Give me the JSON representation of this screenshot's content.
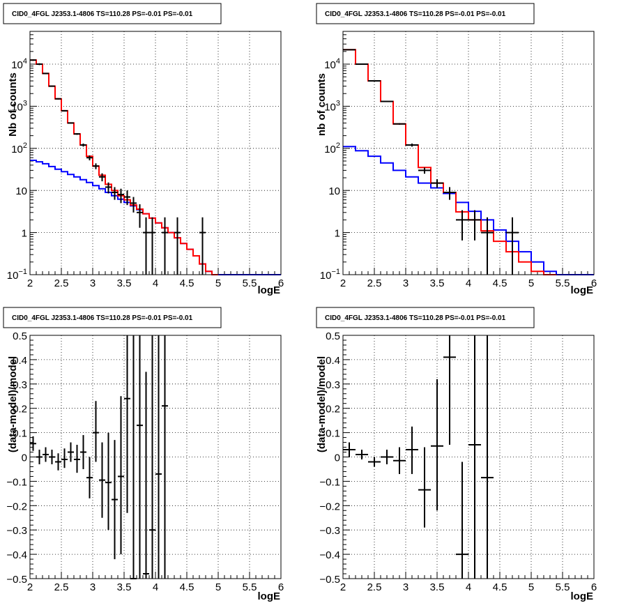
{
  "chart_data": [
    {
      "type": "line",
      "title": "CID0_4FGL J2353.1-4806 TS=110.28 PS=-0.01 PS=-0.01",
      "xlabel": "logE",
      "ylabel": "Nb of counts",
      "log_y": true,
      "xlim": [
        2,
        6
      ],
      "ylim": [
        0.1,
        60000
      ],
      "x_ticks": [
        "2",
        "2.5",
        "3",
        "3.5",
        "4",
        "4.5",
        "5",
        "5.5",
        "6"
      ],
      "y_ticks": [
        {
          "v": 0.1,
          "base": "10",
          "exp": "−1"
        },
        {
          "v": 1,
          "label": "1"
        },
        {
          "v": 10,
          "label": "10"
        },
        {
          "v": 100,
          "base": "10",
          "exp": "2"
        },
        {
          "v": 1000,
          "base": "10",
          "exp": "3"
        },
        {
          "v": 10000,
          "base": "10",
          "exp": "4"
        }
      ],
      "grid": true,
      "bin_edges": [
        2.0,
        2.1,
        2.2,
        2.3,
        2.4,
        2.5,
        2.6,
        2.7,
        2.8,
        2.9,
        3.0,
        3.1,
        3.2,
        3.3,
        3.4,
        3.5,
        3.6,
        3.7,
        3.8,
        3.9,
        4.0,
        4.1,
        4.2,
        4.3,
        4.4,
        4.5,
        4.6,
        4.7,
        4.8,
        4.9,
        5.0,
        5.1,
        5.2,
        5.3,
        5.4,
        5.5,
        5.6,
        5.7,
        5.8,
        5.9,
        6.0
      ],
      "series": [
        {
          "color": "#0000ff",
          "style": "hist",
          "values": [
            52,
            48,
            43,
            37,
            32,
            28,
            24,
            21,
            18,
            15.5,
            13,
            11,
            9,
            7.5,
            6.2,
            5.2,
            4.3,
            3.5,
            2.8,
            2.2,
            1.7,
            1.3,
            1.0,
            0.75,
            0.55,
            0.4,
            0.28,
            0.18,
            0.12,
            0.1,
            0.1,
            0.1,
            0.1,
            0.1,
            0.1,
            0.1,
            0.1,
            0.1,
            0.1,
            0.1
          ]
        },
        {
          "color": "#ff0000",
          "style": "hist",
          "values": [
            12500,
            10000,
            6000,
            3000,
            1500,
            780,
            400,
            220,
            120,
            65,
            38,
            23,
            14,
            10,
            7.5,
            6,
            4.5,
            3.6,
            2.8,
            2.2,
            1.7,
            1.3,
            1.0,
            0.75,
            0.55,
            0.4,
            0.28,
            0.18,
            0.12,
            0.1
          ]
        },
        {
          "color": "#000000",
          "style": "points",
          "points": [
            {
              "x": 2.05,
              "y": 12500,
              "lo": 12000,
              "hi": 13000
            },
            {
              "x": 2.15,
              "y": 10000,
              "lo": 9500,
              "hi": 10500
            },
            {
              "x": 2.25,
              "y": 6000,
              "lo": 5800,
              "hi": 6200
            },
            {
              "x": 2.35,
              "y": 3000,
              "lo": 2900,
              "hi": 3100
            },
            {
              "x": 2.45,
              "y": 1500,
              "lo": 1450,
              "hi": 1550
            },
            {
              "x": 2.55,
              "y": 780,
              "lo": 750,
              "hi": 810
            },
            {
              "x": 2.65,
              "y": 400,
              "lo": 385,
              "hi": 415
            },
            {
              "x": 2.75,
              "y": 220,
              "lo": 210,
              "hi": 230
            },
            {
              "x": 2.85,
              "y": 120,
              "lo": 110,
              "hi": 130
            },
            {
              "x": 2.95,
              "y": 60,
              "lo": 52,
              "hi": 68
            },
            {
              "x": 3.05,
              "y": 38,
              "lo": 32,
              "hi": 44
            },
            {
              "x": 3.15,
              "y": 21,
              "lo": 16.5,
              "hi": 25.5
            },
            {
              "x": 3.25,
              "y": 12,
              "lo": 8.5,
              "hi": 15.5
            },
            {
              "x": 3.35,
              "y": 9,
              "lo": 6,
              "hi": 12
            },
            {
              "x": 3.45,
              "y": 8,
              "lo": 5,
              "hi": 11
            },
            {
              "x": 3.55,
              "y": 7,
              "lo": 4.5,
              "hi": 10
            },
            {
              "x": 3.65,
              "y": 5,
              "lo": 3,
              "hi": 7
            },
            {
              "x": 3.75,
              "y": 3,
              "lo": 1.3,
              "hi": 4.7
            },
            {
              "x": 3.85,
              "y": 1,
              "lo": 0.1,
              "hi": 2.3
            },
            {
              "x": 3.95,
              "y": 1,
              "lo": 0.1,
              "hi": 2.3
            },
            {
              "x": 4.15,
              "y": 1,
              "lo": 0.1,
              "hi": 2.3
            },
            {
              "x": 4.35,
              "y": 1,
              "lo": 0.1,
              "hi": 2.3
            },
            {
              "x": 4.75,
              "y": 1,
              "lo": 0.1,
              "hi": 2.3
            }
          ]
        }
      ]
    },
    {
      "type": "line",
      "title": "CID0_4FGL J2353.1-4806 TS=110.28 PS=-0.01 PS=-0.01",
      "xlabel": "logE",
      "ylabel": "nb of counts",
      "log_y": true,
      "xlim": [
        2,
        6
      ],
      "ylim": [
        0.1,
        60000
      ],
      "x_ticks": [
        "2",
        "2.5",
        "3",
        "3.5",
        "4",
        "4.5",
        "5",
        "5.5",
        "6"
      ],
      "y_ticks": [
        {
          "v": 0.1,
          "base": "10",
          "exp": "−1"
        },
        {
          "v": 1,
          "label": "1"
        },
        {
          "v": 10,
          "label": "10"
        },
        {
          "v": 100,
          "base": "10",
          "exp": "2"
        },
        {
          "v": 1000,
          "base": "10",
          "exp": "3"
        },
        {
          "v": 10000,
          "base": "10",
          "exp": "4"
        }
      ],
      "grid": true,
      "bin_edges": [
        2.0,
        2.2,
        2.4,
        2.6,
        2.8,
        3.0,
        3.2,
        3.4,
        3.6,
        3.8,
        4.0,
        4.2,
        4.4,
        4.6,
        4.8,
        5.0,
        5.2,
        5.4,
        5.6,
        5.8,
        6.0
      ],
      "series": [
        {
          "color": "#0000ff",
          "style": "hist",
          "values": [
            110,
            88,
            65,
            45,
            30,
            21,
            15,
            11.5,
            8.5,
            5.2,
            3.2,
            2.0,
            1.15,
            0.62,
            0.35,
            0.2,
            0.12,
            0.1,
            0.1,
            0.1
          ]
        },
        {
          "color": "#ff0000",
          "style": "hist",
          "values": [
            22000,
            10000,
            4000,
            1300,
            380,
            120,
            35,
            15,
            9,
            3.1,
            2.0,
            1.1,
            0.62,
            0.35,
            0.2,
            0.12,
            0.1
          ]
        },
        {
          "color": "#000000",
          "style": "points",
          "points": [
            {
              "x": 2.1,
              "y": 22000,
              "lo": 21500,
              "hi": 22500
            },
            {
              "x": 2.3,
              "y": 10000,
              "lo": 9700,
              "hi": 10300
            },
            {
              "x": 2.5,
              "y": 4000,
              "lo": 3900,
              "hi": 4100
            },
            {
              "x": 2.7,
              "y": 1300,
              "lo": 1260,
              "hi": 1340
            },
            {
              "x": 2.9,
              "y": 380,
              "lo": 365,
              "hi": 395
            },
            {
              "x": 3.1,
              "y": 120,
              "lo": 110,
              "hi": 130
            },
            {
              "x": 3.3,
              "y": 30,
              "lo": 25,
              "hi": 35
            },
            {
              "x": 3.5,
              "y": 15,
              "lo": 11.5,
              "hi": 18.5
            },
            {
              "x": 3.7,
              "y": 9,
              "lo": 6,
              "hi": 12
            },
            {
              "x": 3.9,
              "y": 2,
              "lo": 0.65,
              "hi": 3.4
            },
            {
              "x": 4.1,
              "y": 2,
              "lo": 0.65,
              "hi": 3.4
            },
            {
              "x": 4.3,
              "y": 1,
              "lo": 0.1,
              "hi": 2.3
            },
            {
              "x": 4.7,
              "y": 1,
              "lo": 0.1,
              "hi": 2.3
            }
          ]
        }
      ]
    },
    {
      "type": "scatter",
      "title": "CID0_4FGL J2353.1-4806 TS=110.28 PS=-0.01 PS=-0.01",
      "xlabel": "logE",
      "ylabel": "(data-model)/model",
      "log_y": false,
      "xlim": [
        2,
        6
      ],
      "ylim": [
        -0.5,
        0.5
      ],
      "x_ticks": [
        "2",
        "2.5",
        "3",
        "3.5",
        "4",
        "4.5",
        "5",
        "5.5",
        "6"
      ],
      "y_ticks": [
        {
          "v": -0.5,
          "label": "−0.5"
        },
        {
          "v": -0.4,
          "label": "−0.4"
        },
        {
          "v": -0.3,
          "label": "−0.3"
        },
        {
          "v": -0.2,
          "label": "−0.2"
        },
        {
          "v": -0.1,
          "label": "−0.1"
        },
        {
          "v": 0,
          "label": "0"
        },
        {
          "v": 0.1,
          "label": "0.1"
        },
        {
          "v": 0.2,
          "label": "0.2"
        },
        {
          "v": 0.3,
          "label": "0.3"
        },
        {
          "v": 0.4,
          "label": "0.4"
        },
        {
          "v": 0.5,
          "label": "0.5"
        }
      ],
      "grid": true,
      "series": [
        {
          "color": "#000000",
          "style": "points",
          "half_width": 0.05,
          "points": [
            {
              "x": 2.05,
              "y": 0.055,
              "lo": 0.025,
              "hi": 0.085
            },
            {
              "x": 2.15,
              "y": 0.0,
              "lo": -0.03,
              "hi": 0.03
            },
            {
              "x": 2.25,
              "y": 0.01,
              "lo": -0.02,
              "hi": 0.04
            },
            {
              "x": 2.35,
              "y": 0.0,
              "lo": -0.03,
              "hi": 0.03
            },
            {
              "x": 2.45,
              "y": -0.02,
              "lo": -0.055,
              "hi": 0.015
            },
            {
              "x": 2.55,
              "y": -0.01,
              "lo": -0.045,
              "hi": 0.035
            },
            {
              "x": 2.65,
              "y": 0.02,
              "lo": -0.02,
              "hi": 0.06
            },
            {
              "x": 2.75,
              "y": -0.01,
              "lo": -0.065,
              "hi": 0.05
            },
            {
              "x": 2.85,
              "y": 0.02,
              "lo": -0.05,
              "hi": 0.09
            },
            {
              "x": 2.95,
              "y": -0.085,
              "lo": -0.17,
              "hi": 0.0
            },
            {
              "x": 3.05,
              "y": 0.1,
              "lo": -0.02,
              "hi": 0.23
            },
            {
              "x": 3.15,
              "y": -0.095,
              "lo": -0.25,
              "hi": 0.06
            },
            {
              "x": 3.25,
              "y": -0.105,
              "lo": -0.3,
              "hi": 0.1
            },
            {
              "x": 3.35,
              "y": -0.175,
              "lo": -0.42,
              "hi": 0.07
            },
            {
              "x": 3.45,
              "y": -0.08,
              "lo": -0.4,
              "hi": 0.25
            },
            {
              "x": 3.55,
              "y": 0.24,
              "lo": -0.23,
              "hi": 0.5
            },
            {
              "x": 3.65,
              "y": -0.5,
              "lo": -0.5,
              "hi": 0.5
            },
            {
              "x": 3.75,
              "y": 0.13,
              "lo": -0.5,
              "hi": 0.5
            },
            {
              "x": 3.85,
              "y": -0.48,
              "lo": -0.5,
              "hi": 0.35
            },
            {
              "x": 3.95,
              "y": -0.3,
              "lo": -0.5,
              "hi": 0.5
            },
            {
              "x": 4.05,
              "y": -0.07,
              "lo": -0.5,
              "hi": 0.5
            },
            {
              "x": 4.15,
              "y": 0.21,
              "lo": -0.5,
              "hi": 0.5
            }
          ]
        }
      ]
    },
    {
      "type": "scatter",
      "title": "CID0_4FGL J2353.1-4806 TS=110.28 PS=-0.01 PS=-0.01",
      "xlabel": "logE",
      "ylabel": "(data-model)/model",
      "log_y": false,
      "xlim": [
        2,
        6
      ],
      "ylim": [
        -0.5,
        0.5
      ],
      "x_ticks": [
        "2",
        "2.5",
        "3",
        "3.5",
        "4",
        "4.5",
        "5",
        "5.5",
        "6"
      ],
      "y_ticks": [
        {
          "v": -0.5,
          "label": "−0.5"
        },
        {
          "v": -0.4,
          "label": "−0.4"
        },
        {
          "v": -0.3,
          "label": "−0.3"
        },
        {
          "v": -0.2,
          "label": "−0.2"
        },
        {
          "v": -0.1,
          "label": "−0.1"
        },
        {
          "v": 0,
          "label": "0"
        },
        {
          "v": 0.1,
          "label": "0.1"
        },
        {
          "v": 0.2,
          "label": "0.2"
        },
        {
          "v": 0.3,
          "label": "0.3"
        },
        {
          "v": 0.4,
          "label": "0.4"
        },
        {
          "v": 0.5,
          "label": "0.5"
        }
      ],
      "grid": true,
      "series": [
        {
          "color": "#000000",
          "style": "points",
          "half_width": 0.1,
          "points": [
            {
              "x": 2.1,
              "y": 0.03,
              "lo": 0.0,
              "hi": 0.06
            },
            {
              "x": 2.3,
              "y": 0.01,
              "lo": -0.01,
              "hi": 0.03
            },
            {
              "x": 2.5,
              "y": -0.02,
              "lo": -0.04,
              "hi": 0.0
            },
            {
              "x": 2.7,
              "y": 0.0,
              "lo": -0.03,
              "hi": 0.03
            },
            {
              "x": 2.9,
              "y": -0.015,
              "lo": -0.07,
              "hi": 0.04
            },
            {
              "x": 3.1,
              "y": 0.03,
              "lo": -0.07,
              "hi": 0.125
            },
            {
              "x": 3.3,
              "y": -0.135,
              "lo": -0.29,
              "hi": 0.04
            },
            {
              "x": 3.5,
              "y": 0.045,
              "lo": -0.22,
              "hi": 0.32
            },
            {
              "x": 3.7,
              "y": 0.41,
              "lo": 0.05,
              "hi": 0.5
            },
            {
              "x": 3.9,
              "y": -0.4,
              "lo": -0.5,
              "hi": -0.02
            },
            {
              "x": 4.1,
              "y": 0.05,
              "lo": -0.5,
              "hi": 0.5
            },
            {
              "x": 4.3,
              "y": -0.085,
              "lo": -0.5,
              "hi": 0.5
            }
          ]
        }
      ]
    }
  ]
}
